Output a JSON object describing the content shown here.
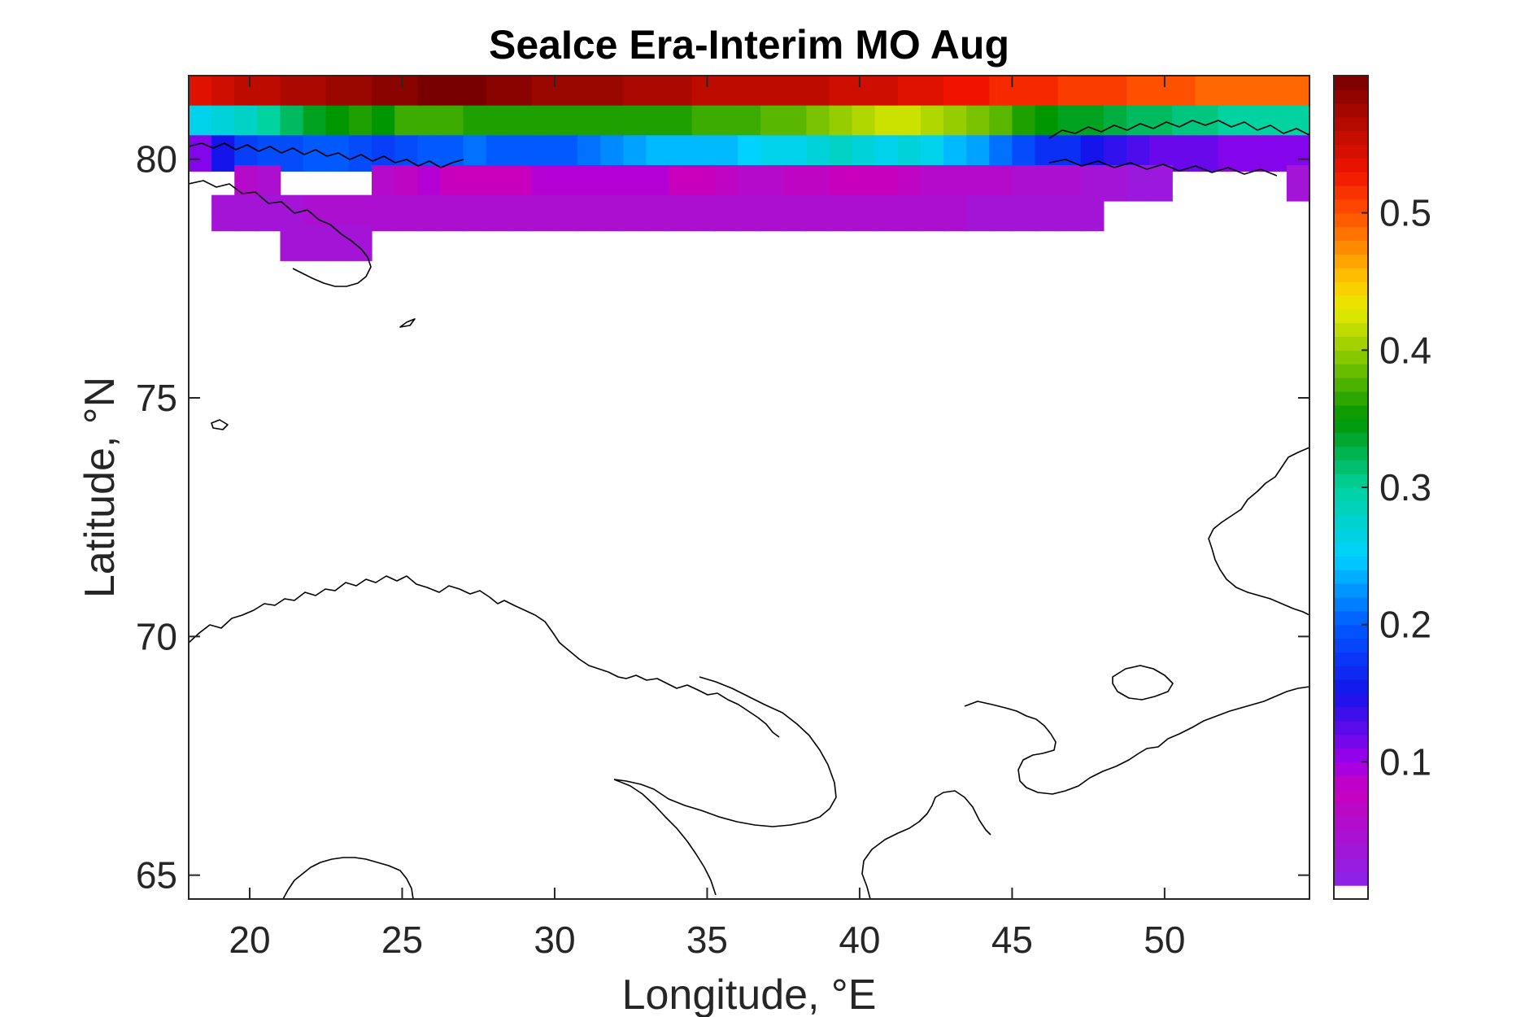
{
  "chart_data": {
    "type": "heatmap",
    "title": "SeaIce Era-Interim MO Aug",
    "xlabel": "Longitude, °E",
    "ylabel": "Latitude, °N",
    "xlim": [
      18,
      54.75
    ],
    "ylim": [
      64.5,
      81.75
    ],
    "xticks": [
      20,
      25,
      30,
      35,
      40,
      45,
      50
    ],
    "yticks": [
      65,
      70,
      75,
      80
    ],
    "xtick_labels": [
      "20",
      "25",
      "30",
      "35",
      "40",
      "45",
      "50"
    ],
    "ytick_labels": [
      "65",
      "70",
      "75",
      "80"
    ],
    "grid": false,
    "colorbar": {
      "location": "right",
      "range": [
        0,
        0.6
      ],
      "ticks": [
        0.1,
        0.2,
        0.3,
        0.4,
        0.5
      ],
      "tick_labels": [
        "0.1",
        "0.2",
        "0.3",
        "0.4",
        "0.5"
      ],
      "colormap": "jet-like with magenta/purple low end and dark red high end"
    },
    "cell_width_deg": 0.75,
    "cell_height_deg": 0.75,
    "grid_rows": [
      {
        "lat": 81.375,
        "lon_start": 18,
        "values": [
          0.54,
          0.55,
          0.56,
          0.56,
          0.57,
          0.57,
          0.58,
          0.58,
          0.59,
          0.59,
          0.6,
          0.6,
          0.6,
          0.59,
          0.59,
          0.58,
          0.58,
          0.58,
          0.58,
          0.57,
          0.57,
          0.57,
          0.56,
          0.56,
          0.56,
          0.56,
          0.56,
          0.56,
          0.55,
          0.55,
          0.55,
          0.54,
          0.54,
          0.53,
          0.53,
          0.52,
          0.52,
          0.52,
          0.51,
          0.51,
          0.51,
          0.5,
          0.5,
          0.5,
          0.49,
          0.49,
          0.49,
          0.49,
          0.49
        ]
      },
      {
        "lat": 80.75,
        "lon_start": 18,
        "values": [
          0.26,
          0.27,
          0.28,
          0.3,
          0.32,
          0.34,
          0.35,
          0.36,
          0.35,
          0.37,
          0.37,
          0.37,
          0.36,
          0.36,
          0.36,
          0.36,
          0.36,
          0.36,
          0.36,
          0.36,
          0.36,
          0.36,
          0.37,
          0.37,
          0.37,
          0.38,
          0.38,
          0.39,
          0.4,
          0.41,
          0.42,
          0.42,
          0.41,
          0.4,
          0.39,
          0.38,
          0.36,
          0.35,
          0.34,
          0.34,
          0.33,
          0.32,
          0.32,
          0.31,
          0.31,
          0.3,
          0.3,
          0.3,
          0.3
        ]
      },
      {
        "lat": 80.125,
        "lon_start": 18,
        "values": [
          0.11,
          0.15,
          0.18,
          0.19,
          0.19,
          0.2,
          0.2,
          0.19,
          0.18,
          0.19,
          0.2,
          0.2,
          0.21,
          0.2,
          0.2,
          0.2,
          0.2,
          0.21,
          0.22,
          0.23,
          0.24,
          0.24,
          0.24,
          0.24,
          0.25,
          0.26,
          0.26,
          0.27,
          0.28,
          0.27,
          0.26,
          0.27,
          0.26,
          0.24,
          0.23,
          0.21,
          0.19,
          0.17,
          0.17,
          0.15,
          0.14,
          0.13,
          0.12,
          0.12,
          0.12,
          0.11,
          0.11,
          0.11,
          0.11
        ]
      },
      {
        "lat": 79.5,
        "lon_start": 18,
        "values": [
          null,
          null,
          0.06,
          0.05,
          null,
          null,
          null,
          null,
          0.06,
          0.07,
          0.09,
          0.08,
          0.08,
          0.08,
          0.08,
          0.09,
          0.09,
          0.09,
          0.09,
          0.09,
          0.09,
          0.08,
          0.08,
          0.07,
          0.06,
          0.06,
          0.07,
          0.07,
          0.08,
          0.08,
          0.08,
          0.07,
          0.06,
          0.06,
          0.06,
          0.06,
          0.05,
          0.05,
          0.05,
          0.04,
          0.04,
          0.03,
          0.03,
          null,
          null,
          null,
          null,
          null,
          0.04
        ]
      },
      {
        "lat": 78.875,
        "lon_start": 18,
        "values": [
          null,
          0.04,
          0.04,
          0.04,
          0.04,
          0.05,
          0.05,
          0.05,
          0.05,
          0.05,
          0.05,
          0.05,
          0.05,
          0.05,
          0.05,
          0.05,
          0.05,
          0.05,
          0.05,
          0.05,
          0.05,
          0.05,
          0.05,
          0.05,
          0.05,
          0.05,
          0.05,
          0.05,
          0.05,
          0.05,
          0.05,
          0.05,
          0.05,
          0.05,
          0.04,
          0.04,
          0.04,
          0.04,
          0.04,
          0.04
        ]
      },
      {
        "lat": 78.25,
        "lon_start": 18,
        "values": [
          null,
          null,
          null,
          null,
          0.04,
          0.04,
          0.04,
          0.04
        ]
      }
    ]
  }
}
